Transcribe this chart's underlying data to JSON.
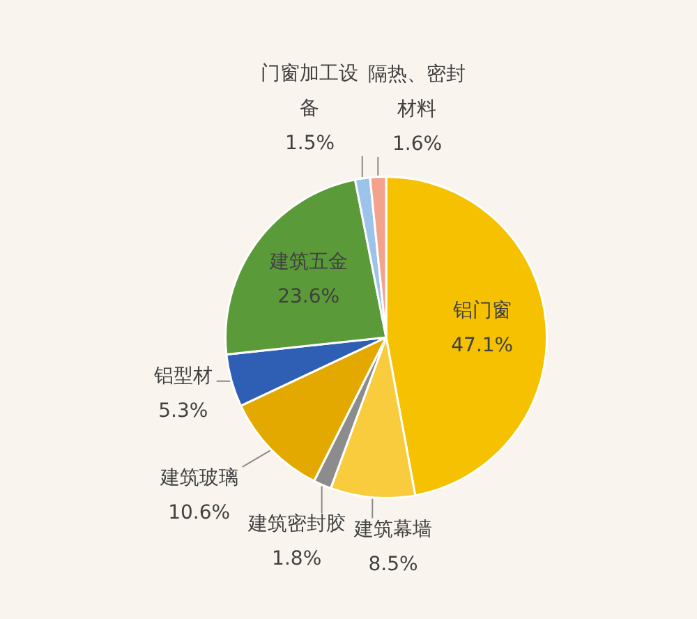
{
  "chart_data": {
    "type": "pie",
    "categories": [
      "铝门窗",
      "建筑幕墙",
      "建筑密封胶",
      "建筑玻璃",
      "铝型材",
      "建筑五金",
      "门窗加工设备",
      "隔热、密封材料"
    ],
    "values": [
      47.1,
      8.5,
      1.8,
      10.6,
      5.3,
      23.6,
      1.5,
      1.6
    ],
    "colors": [
      "#f6c100",
      "#f8cc3c",
      "#8c8c8c",
      "#e3a900",
      "#2f5fb4",
      "#5b9a39",
      "#9cc3ea",
      "#f3a28c"
    ],
    "value_labels": [
      "47.1%",
      "8.5%",
      "1.8%",
      "10.6%",
      "5.3%",
      "23.6%",
      "1.5%",
      "1.6%"
    ]
  }
}
